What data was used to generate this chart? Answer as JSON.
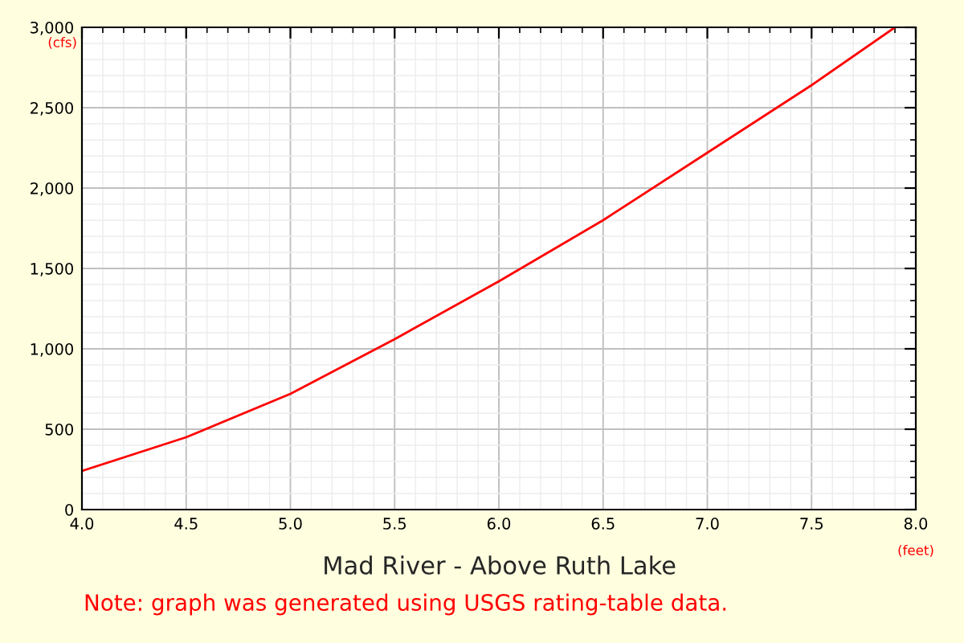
{
  "chart_data": {
    "type": "line",
    "title": "Mad River - Above Ruth Lake",
    "xlabel": "(feet)",
    "ylabel": "(cfs)",
    "annotations": [
      "Note: graph was generated using USGS rating-table data."
    ],
    "x": [
      4.0,
      4.5,
      5.0,
      5.5,
      6.0,
      6.5,
      7.0,
      7.5,
      7.9
    ],
    "series": [
      {
        "color": "#ff0000",
        "values": [
          240,
          450,
          720,
          1060,
          1420,
          1800,
          2220,
          2640,
          3000
        ]
      }
    ],
    "xlim": [
      4.0,
      8.0
    ],
    "xticks": [
      {
        "value": 4,
        "label": "4.0"
      },
      4.5,
      {
        "value": 5,
        "label": "5.0"
      },
      5.5,
      {
        "value": 6,
        "label": "6.0"
      },
      6.5,
      {
        "value": 7,
        "label": "7.0"
      },
      7.5,
      {
        "value": 8,
        "label": "8.0"
      }
    ],
    "ylim": [
      0,
      3000
    ],
    "yticks": [
      0,
      500,
      {
        "value": 1000,
        "label": "1,000"
      },
      {
        "value": 1500,
        "label": "1,500"
      },
      {
        "value": 2000,
        "label": "2,000"
      },
      {
        "value": 2500,
        "label": "2,500"
      },
      {
        "value": 3000,
        "label": "3,000"
      }
    ],
    "grid": true,
    "legend": false,
    "marker": "none",
    "line_style": "solid"
  }
}
